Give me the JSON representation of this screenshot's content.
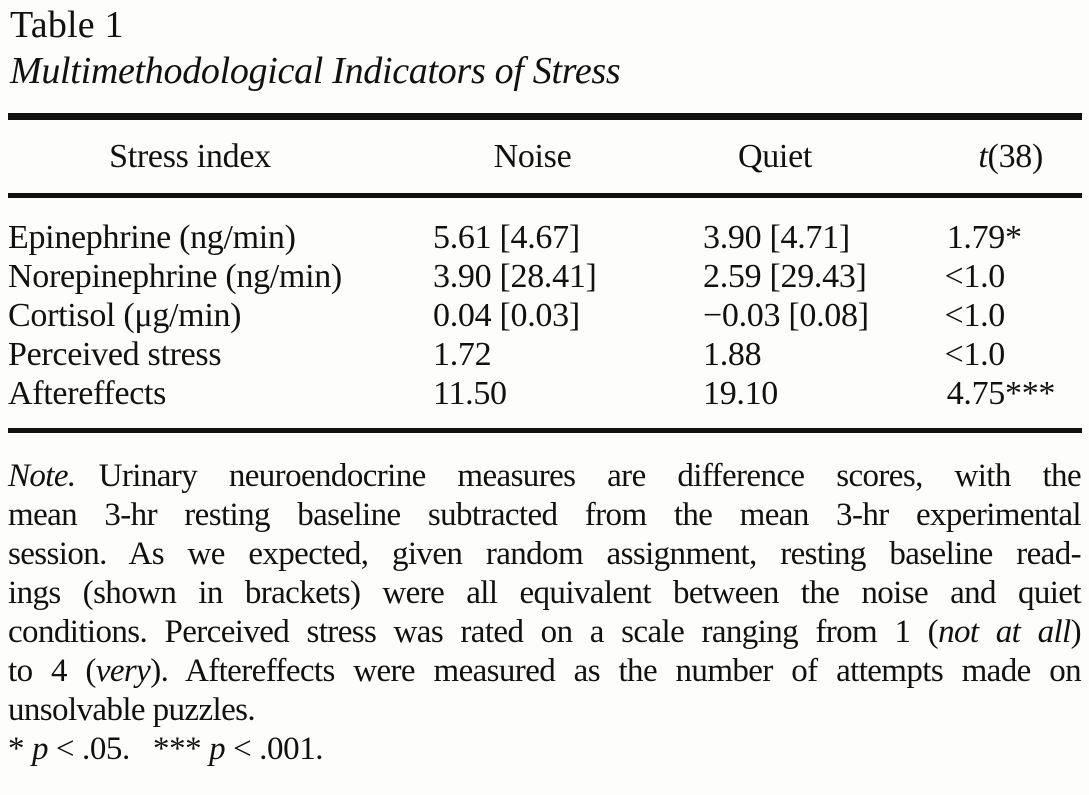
{
  "title": {
    "label": "Table 1",
    "subtitle": "Multimethodological Indicators of Stress"
  },
  "header": {
    "stress_index": "Stress index",
    "noise": "Noise",
    "quiet": "Quiet",
    "t_italic": "t",
    "t_rest": "(38)"
  },
  "rows": [
    {
      "label": "Epinephrine (ng/min)",
      "noise": "5.61 [4.67]",
      "quiet": "3.90 [4.71]",
      "t": "1.79",
      "stars": "*"
    },
    {
      "label": "Norepinephrine (ng/min)",
      "noise": "3.90 [28.41]",
      "quiet": "2.59 [29.43]",
      "t": "<1.0",
      "stars": ""
    },
    {
      "label": "Cortisol (μg/min)",
      "noise": "0.04 [0.03]",
      "quiet": "−0.03 [0.08]",
      "t": "<1.0",
      "stars": ""
    },
    {
      "label": "Perceived stress",
      "noise": "1.72",
      "quiet": "1.88",
      "t": "<1.0",
      "stars": ""
    },
    {
      "label": "Aftereffects",
      "noise": "11.50",
      "quiet": "19.10",
      "t": "4.75",
      "stars": "***"
    }
  ],
  "note": {
    "lines": [
      [
        {
          "t": "Note.",
          "i": true
        },
        {
          "t": "Urinary neuroendocrine measures are difference scores, with the",
          "g": true
        }
      ],
      [
        {
          "t": "mean 3-hr resting baseline subtracted from the mean 3-hr experimental"
        }
      ],
      [
        {
          "t": "session. As we expected, given random assignment, resting baseline read-"
        }
      ],
      [
        {
          "t": "ings (shown in brackets) were all equivalent between the noise and quiet"
        }
      ],
      [
        {
          "t": "conditions. Perceived stress was rated on a scale ranging from 1 ("
        },
        {
          "t": "not at all",
          "i": true
        },
        {
          "t": ")"
        }
      ],
      [
        {
          "t": "to 4 ("
        },
        {
          "t": "very",
          "i": true
        },
        {
          "t": "). Aftereffects were measured as the number of attempts made on"
        }
      ],
      [
        {
          "t": "unsolvable puzzles."
        }
      ]
    ],
    "significance": [
      {
        "t": "* "
      },
      {
        "t": "p",
        "i": true
      },
      {
        "t": " < .05."
      },
      {
        "t": "*** ",
        "g": true
      },
      {
        "t": "p",
        "i": true
      },
      {
        "t": " < .001."
      }
    ]
  },
  "colors": {
    "text": "#111111",
    "background": "#fdfdfb",
    "rule": "#111111"
  }
}
